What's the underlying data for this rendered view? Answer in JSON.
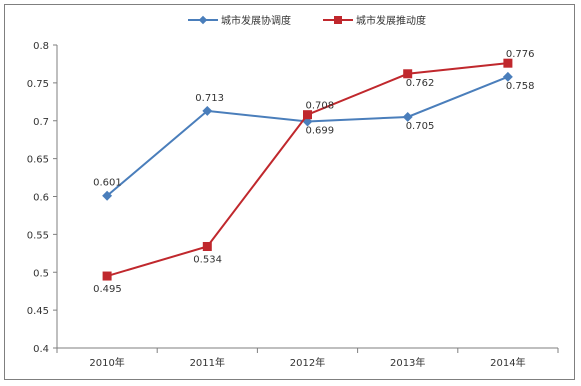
{
  "chart_data": {
    "type": "line",
    "title": "",
    "xlabel": "",
    "ylabel": "",
    "categories": [
      "2010年",
      "2011年",
      "2012年",
      "2013年",
      "2014年"
    ],
    "ylim": [
      0.4,
      0.8
    ],
    "yticks": [
      {
        "value": 0.4,
        "label": "0.4"
      },
      {
        "value": 0.45,
        "label": "0.45"
      },
      {
        "value": 0.5,
        "label": "0.5"
      },
      {
        "value": 0.55,
        "label": "0.55"
      },
      {
        "value": 0.6,
        "label": "0.6"
      },
      {
        "value": 0.65,
        "label": "0.65"
      },
      {
        "value": 0.7,
        "label": "0.7"
      },
      {
        "value": 0.75,
        "label": "0.75"
      },
      {
        "value": 0.8,
        "label": "0.8"
      }
    ],
    "legend_position": "top-center",
    "grid": false,
    "series": [
      {
        "name": "城市发展协调度",
        "color": "#4a7ebb",
        "marker": "diamond",
        "values": [
          0.601,
          0.713,
          0.699,
          0.705,
          0.758
        ],
        "labels": [
          "0.601",
          "0.713",
          "0.699",
          "0.705",
          "0.758"
        ]
      },
      {
        "name": "城市发展推动度",
        "color": "#c0282d",
        "marker": "square",
        "values": [
          0.495,
          0.534,
          0.708,
          0.762,
          0.776
        ],
        "labels": [
          "0.495",
          "0.534",
          "0.708",
          "0.762",
          "0.776"
        ]
      }
    ]
  }
}
